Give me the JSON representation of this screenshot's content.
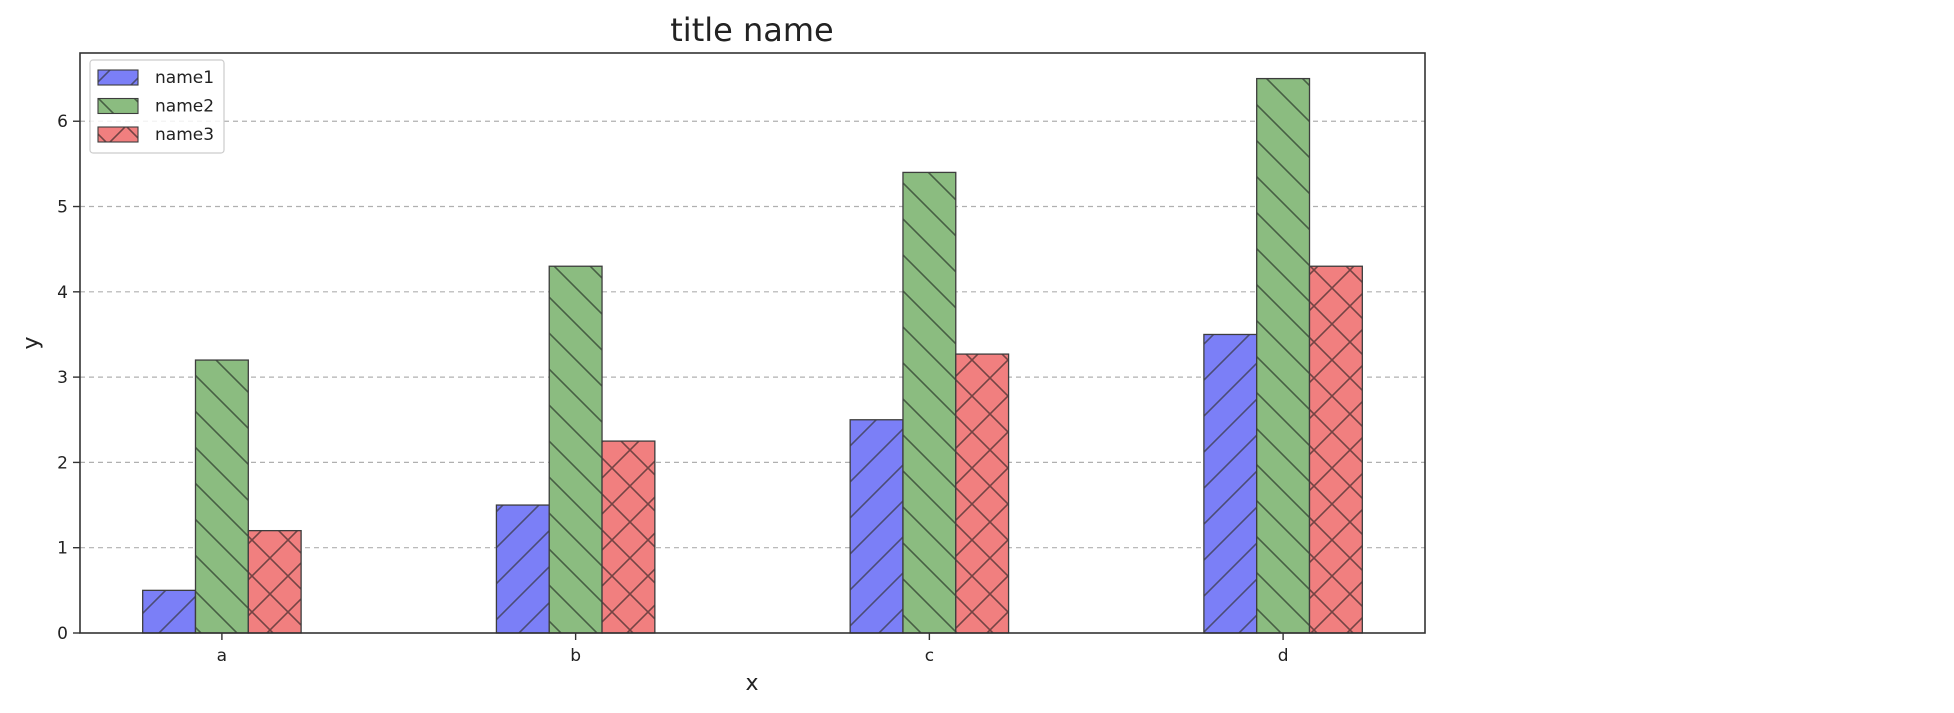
{
  "chart_data": {
    "type": "bar",
    "title": "title name",
    "xlabel": "x",
    "ylabel": "y",
    "categories": [
      "a",
      "b",
      "c",
      "d"
    ],
    "yticks": [
      "0",
      "1",
      "2",
      "3",
      "4",
      "5",
      "6"
    ],
    "ylim": [
      0,
      6.8
    ],
    "grid": "horizontal-dashed",
    "legend_position": "top-left",
    "series": [
      {
        "name": "name1",
        "values": [
          0.5,
          1.5,
          2.5,
          3.5
        ],
        "color": "#7b7ff7",
        "hatch": "diagonal-forward"
      },
      {
        "name": "name2",
        "values": [
          3.2,
          4.3,
          5.4,
          6.5
        ],
        "color": "#8bbc80",
        "hatch": "diagonal-back"
      },
      {
        "name": "name3",
        "values": [
          1.2,
          2.25,
          3.27,
          4.3
        ],
        "color": "#f17f7f",
        "hatch": "cross"
      }
    ]
  }
}
